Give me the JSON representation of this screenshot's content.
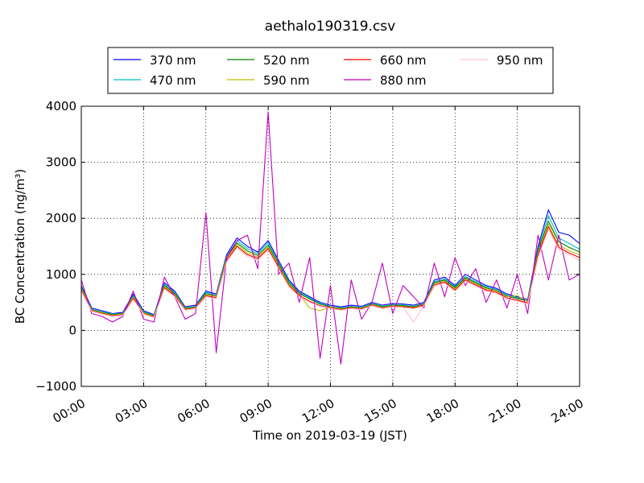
{
  "chart_data": {
    "type": "line",
    "title": "aethalo190319.csv",
    "xlabel": "Time on 2019-03-19 (JST)",
    "ylabel": "BC Concentration (ng/m³)",
    "x_unit": "hour of day",
    "xlim": [
      0,
      24
    ],
    "ylim": [
      -1000,
      4000
    ],
    "x_ticks": [
      "00:00",
      "03:00",
      "06:00",
      "09:00",
      "12:00",
      "15:00",
      "18:00",
      "21:00",
      "24:00"
    ],
    "y_ticks": [
      "−1000",
      "0",
      "1000",
      "2000",
      "3000",
      "4000"
    ],
    "grid": true,
    "legend_position": "top, above plot",
    "x": [
      0,
      0.5,
      1,
      1.5,
      2,
      2.5,
      3,
      3.5,
      4,
      4.5,
      5,
      5.5,
      6,
      6.5,
      7,
      7.5,
      8,
      8.5,
      9,
      9.5,
      10,
      10.5,
      11,
      11.5,
      12,
      12.5,
      13,
      13.5,
      14,
      14.5,
      15,
      15.5,
      16,
      16.5,
      17,
      17.5,
      18,
      18.5,
      19,
      19.5,
      20,
      20.5,
      21,
      21.5,
      22,
      22.5,
      23,
      23.5,
      24
    ],
    "series": [
      {
        "name": "370 nm",
        "color": "#0000ff",
        "values": [
          800,
          400,
          350,
          300,
          320,
          650,
          350,
          280,
          850,
          700,
          420,
          450,
          700,
          650,
          1350,
          1650,
          1500,
          1400,
          1600,
          1250,
          900,
          700,
          600,
          500,
          450,
          420,
          450,
          430,
          500,
          450,
          480,
          470,
          450,
          500,
          900,
          950,
          800,
          1000,
          900,
          800,
          750,
          650,
          600,
          550,
          1500,
          2150,
          1750,
          1700,
          1550
        ]
      },
      {
        "name": "470 nm",
        "color": "#00bfbf",
        "values": [
          780,
          380,
          330,
          290,
          300,
          620,
          330,
          270,
          820,
          680,
          400,
          430,
          680,
          630,
          1320,
          1600,
          1460,
          1370,
          1560,
          1220,
          870,
          680,
          580,
          480,
          430,
          400,
          430,
          410,
          480,
          430,
          460,
          450,
          430,
          480,
          870,
          920,
          780,
          960,
          870,
          780,
          730,
          630,
          580,
          530,
          1450,
          2050,
          1650,
          1550,
          1450
        ]
      },
      {
        "name": "520 nm",
        "color": "#008000",
        "values": [
          760,
          370,
          320,
          280,
          300,
          600,
          320,
          260,
          800,
          660,
          390,
          420,
          660,
          610,
          1300,
          1560,
          1420,
          1340,
          1520,
          1190,
          850,
          660,
          560,
          470,
          420,
          390,
          420,
          400,
          470,
          420,
          450,
          440,
          420,
          470,
          850,
          900,
          760,
          940,
          850,
          760,
          710,
          610,
          570,
          520,
          1420,
          1950,
          1580,
          1480,
          1400
        ]
      },
      {
        "name": "590 nm",
        "color": "#bfbf00",
        "values": [
          740,
          360,
          310,
          270,
          290,
          590,
          310,
          250,
          780,
          640,
          380,
          410,
          640,
          600,
          1280,
          1530,
          1380,
          1310,
          1490,
          1160,
          820,
          640,
          400,
          350,
          420,
          380,
          410,
          390,
          460,
          410,
          440,
          430,
          410,
          460,
          830,
          880,
          740,
          920,
          830,
          740,
          700,
          600,
          620,
          510,
          1380,
          1900,
          1520,
          1420,
          1350
        ]
      },
      {
        "name": "660 nm",
        "color": "#ff0000",
        "values": [
          720,
          350,
          300,
          260,
          280,
          570,
          300,
          240,
          760,
          620,
          370,
          400,
          620,
          580,
          1250,
          1500,
          1350,
          1280,
          1460,
          1130,
          800,
          620,
          520,
          440,
          400,
          370,
          400,
          380,
          450,
          400,
          430,
          420,
          400,
          450,
          810,
          860,
          720,
          900,
          810,
          720,
          680,
          580,
          540,
          490,
          1350,
          1850,
          1480,
          1380,
          1300
        ]
      },
      {
        "name": "880 nm",
        "color": "#bf00bf",
        "values": [
          900,
          300,
          250,
          150,
          250,
          700,
          200,
          150,
          950,
          600,
          200,
          300,
          2100,
          -400,
          1300,
          1600,
          1700,
          1100,
          3900,
          1000,
          1200,
          500,
          1300,
          -500,
          800,
          -600,
          900,
          200,
          500,
          1200,
          300,
          800,
          600,
          400,
          1200,
          600,
          1300,
          800,
          1100,
          500,
          900,
          400,
          1000,
          300,
          1700,
          900,
          1700,
          900,
          1000
        ]
      },
      {
        "name": "950 nm",
        "color": "#ffc0cb",
        "values": [
          700,
          340,
          290,
          250,
          270,
          550,
          290,
          230,
          740,
          600,
          360,
          390,
          600,
          560,
          1220,
          1470,
          1320,
          1250,
          1430,
          1100,
          780,
          600,
          500,
          430,
          390,
          360,
          390,
          370,
          440,
          390,
          420,
          410,
          150,
          440,
          790,
          840,
          700,
          880,
          790,
          700,
          660,
          560,
          520,
          470,
          1300,
          1800,
          1450,
          1350,
          1250
        ]
      }
    ]
  }
}
